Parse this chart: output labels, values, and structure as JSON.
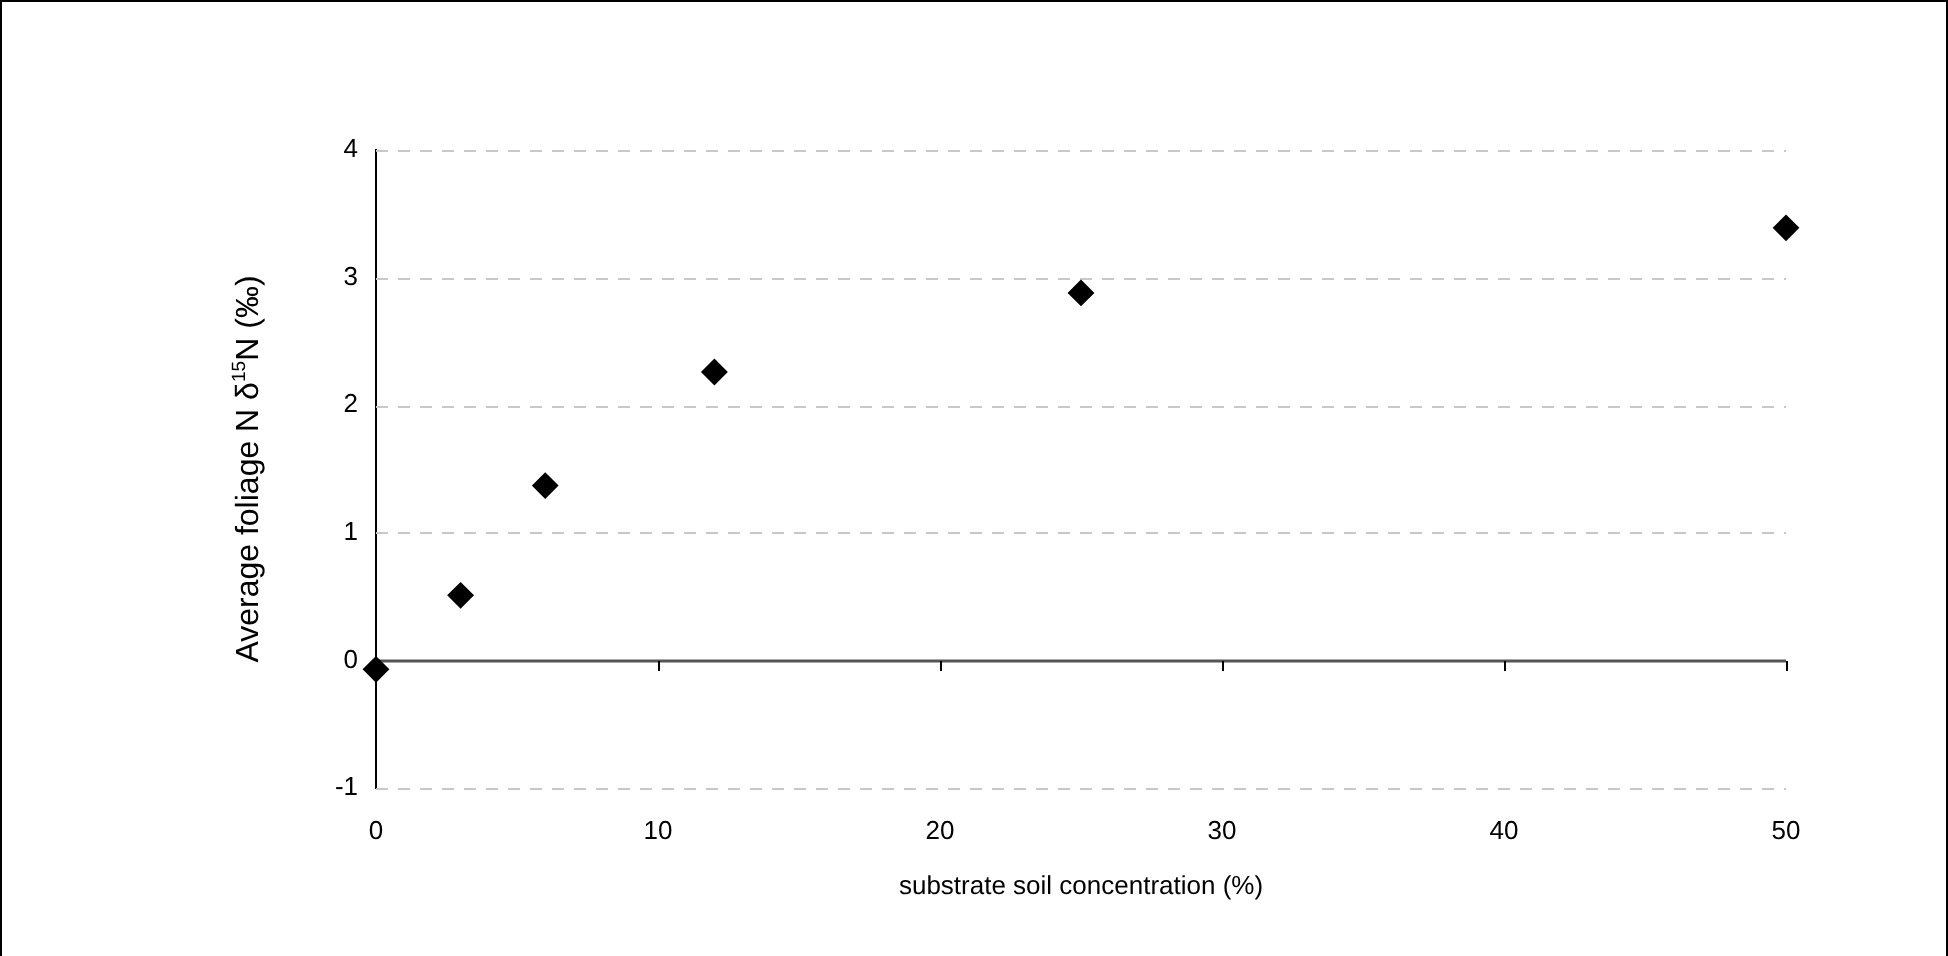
{
  "chart_data": {
    "type": "scatter",
    "xlabel": "substrate soil concentration (%)",
    "ylabel": "Average foliage N δ$^{15}$N (‰)",
    "x": [
      0,
      3,
      6,
      12,
      25,
      50
    ],
    "series": [
      {
        "color": "#000000",
        "values": [
          -0.07,
          0.51,
          1.37,
          2.26,
          2.88,
          3.39
        ]
      }
    ],
    "xlim": [
      0,
      50
    ],
    "xticks": [
      0,
      10,
      20,
      30,
      40,
      50
    ],
    "ylim": [
      -1,
      4
    ],
    "yticks": [
      -1,
      0,
      1,
      2,
      3,
      4
    ],
    "grid": "y",
    "marker": "diamond",
    "legend": false
  }
}
